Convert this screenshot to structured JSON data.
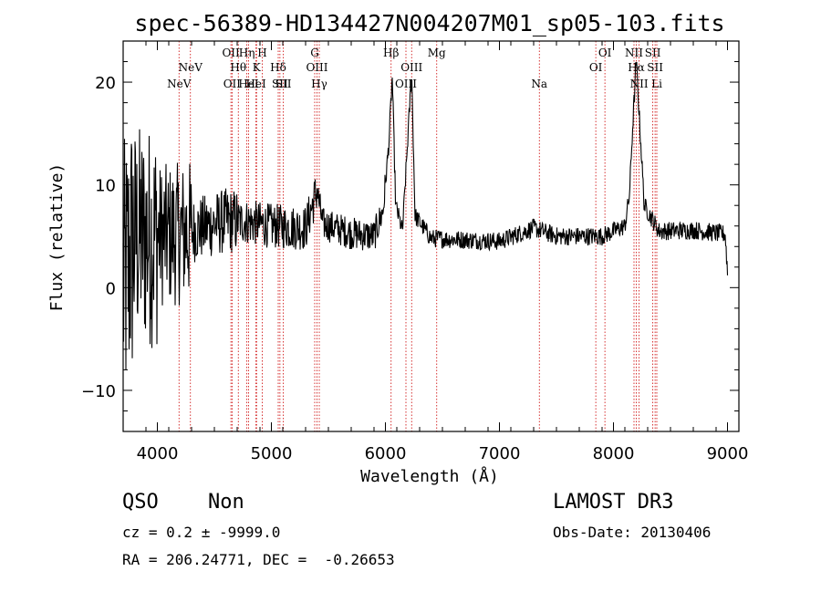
{
  "chart_data": {
    "type": "line",
    "title": "spec-56389-HD134427N004207M01_sp05-103.fits",
    "xlabel": "Wavelength (Å)",
    "ylabel": "Flux (relative)",
    "xlim": [
      3700,
      9100
    ],
    "ylim": [
      -14,
      24
    ],
    "xticks": [
      4000,
      5000,
      6000,
      7000,
      8000,
      9000
    ],
    "yticks": [
      -10,
      0,
      10,
      20
    ],
    "spectrum_anchors": [
      [
        3700,
        0
      ],
      [
        3800,
        5
      ],
      [
        3950,
        5
      ],
      [
        4200,
        5.2
      ],
      [
        4600,
        6.5
      ],
      [
        4800,
        6.4
      ],
      [
        5000,
        6.0
      ],
      [
        5300,
        5.8
      ],
      [
        5400,
        9.5
      ],
      [
        5450,
        6.2
      ],
      [
        5700,
        5.3
      ],
      [
        5900,
        5.0
      ],
      [
        5980,
        7.5
      ],
      [
        6030,
        14
      ],
      [
        6060,
        20.5
      ],
      [
        6090,
        8
      ],
      [
        6150,
        5.5
      ],
      [
        6230,
        21
      ],
      [
        6260,
        7
      ],
      [
        6400,
        4.8
      ],
      [
        7000,
        4.5
      ],
      [
        7300,
        5.8
      ],
      [
        7500,
        5.0
      ],
      [
        7900,
        5.0
      ],
      [
        8100,
        6.0
      ],
      [
        8140,
        9
      ],
      [
        8170,
        16
      ],
      [
        8200,
        22
      ],
      [
        8230,
        16
      ],
      [
        8270,
        8
      ],
      [
        8400,
        5.5
      ],
      [
        8700,
        5.6
      ],
      [
        8980,
        5.2
      ],
      [
        9000,
        1.5
      ]
    ],
    "emission_lines": [
      {
        "name": "NeV",
        "wavelength": 4190,
        "row": 3
      },
      {
        "name": "NeV",
        "wavelength": 4290,
        "row": 2
      },
      {
        "name": "OII",
        "wavelength": 4645,
        "row": 1
      },
      {
        "name": "OII",
        "wavelength": 4655,
        "row": 3
      },
      {
        "name": "Hθ",
        "wavelength": 4710,
        "row": 2
      },
      {
        "name": "Hη",
        "wavelength": 4785,
        "row": 1
      },
      {
        "name": "HeI",
        "wavelength": 4800,
        "row": 3
      },
      {
        "name": "K",
        "wavelength": 4870,
        "row": 2
      },
      {
        "name": "H",
        "wavelength": 4920,
        "row": 1
      },
      {
        "name": "HeI",
        "wavelength": 4865,
        "row": 3
      },
      {
        "name": "Hδ",
        "wavelength": 5060,
        "row": 2
      },
      {
        "name": "SII",
        "wavelength": 5075,
        "row": 3
      },
      {
        "name": "SII",
        "wavelength": 5105,
        "row": 3
      },
      {
        "name": "G",
        "wavelength": 5380,
        "row": 1
      },
      {
        "name": "OIII",
        "wavelength": 5400,
        "row": 2
      },
      {
        "name": "Hγ",
        "wavelength": 5420,
        "row": 3
      },
      {
        "name": "Hβ",
        "wavelength": 6050,
        "row": 1
      },
      {
        "name": "OIII",
        "wavelength": 6180,
        "row": 3
      },
      {
        "name": "OIII",
        "wavelength": 6230,
        "row": 2
      },
      {
        "name": "Mg",
        "wavelength": 6450,
        "row": 1
      },
      {
        "name": "Na",
        "wavelength": 7350,
        "row": 3
      },
      {
        "name": "OI",
        "wavelength": 7845,
        "row": 2
      },
      {
        "name": "OI",
        "wavelength": 7925,
        "row": 1
      },
      {
        "name": "NII",
        "wavelength": 8180,
        "row": 1
      },
      {
        "name": "Hα",
        "wavelength": 8200,
        "row": 2
      },
      {
        "name": "NII",
        "wavelength": 8225,
        "row": 3
      },
      {
        "name": "SII",
        "wavelength": 8345,
        "row": 1
      },
      {
        "name": "SII",
        "wavelength": 8365,
        "row": 2
      },
      {
        "name": "Li",
        "wavelength": 8380,
        "row": 3
      }
    ],
    "line_color": "#000000",
    "marker_color": "#cc0000"
  },
  "info": {
    "class": "QSO",
    "subclass": "Non",
    "survey": "LAMOST DR3",
    "redshift": "cz = 0.2 ± -9999.0",
    "obs_date": "Obs-Date: 20130406",
    "coords": "RA = 206.24771, DEC =  -0.26653"
  }
}
